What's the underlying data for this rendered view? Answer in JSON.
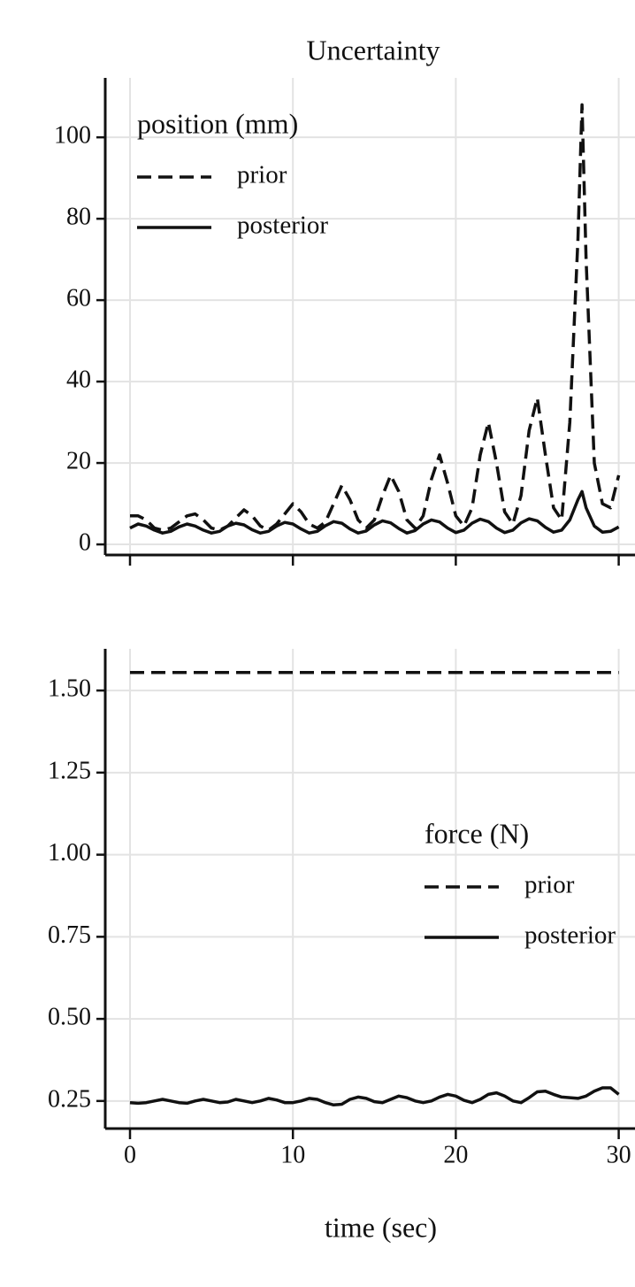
{
  "chart_data": [
    {
      "type": "line",
      "title": "Uncertainty",
      "legend_title": "position (mm)",
      "legend": "upper left",
      "grid": true,
      "xtick_labels": false,
      "xlim": [
        -1.52,
        31.0
      ],
      "xticks": [
        0,
        10,
        20,
        30
      ],
      "ylim": [
        -2.6,
        114.6
      ],
      "yticks": [
        0,
        20,
        40,
        60,
        80,
        100
      ],
      "x": [
        0,
        0.5,
        1,
        1.5,
        2,
        2.5,
        3,
        3.5,
        4,
        4.5,
        5,
        5.5,
        6,
        6.5,
        7,
        7.5,
        8,
        8.5,
        9,
        9.5,
        10,
        10.5,
        11,
        11.5,
        12,
        12.5,
        13,
        13.5,
        14,
        14.5,
        15,
        15.5,
        16,
        16.5,
        17,
        17.5,
        18,
        18.5,
        19,
        19.5,
        20,
        20.5,
        21,
        21.5,
        22,
        22.5,
        23,
        23.5,
        24,
        24.5,
        25,
        25.5,
        26,
        26.5,
        27,
        27.5,
        27.75,
        28,
        28.5,
        29,
        29.5,
        30
      ],
      "series": [
        {
          "name": "prior",
          "color": "#111111",
          "linestyle": "dashed",
          "values": [
            7,
            7,
            6,
            4,
            3.5,
            4,
            5.5,
            7,
            7.5,
            6,
            4,
            3.5,
            4.5,
            6.5,
            8.5,
            7,
            4.5,
            3.5,
            5,
            7.5,
            10,
            8,
            5,
            4,
            5.5,
            10,
            14.5,
            11,
            6,
            4,
            6,
            12,
            17,
            13,
            6,
            4,
            7,
            16,
            22,
            15,
            7,
            4.5,
            9,
            22,
            30,
            20,
            8,
            5,
            12,
            28,
            36,
            22,
            9,
            6,
            30,
            75,
            108,
            70,
            20,
            10,
            9,
            17
          ]
        },
        {
          "name": "posterior",
          "color": "#111111",
          "linestyle": "solid",
          "values": [
            4,
            5,
            4.5,
            3.5,
            2.8,
            3.2,
            4.3,
            5,
            4.5,
            3.5,
            2.8,
            3.2,
            4.5,
            5.2,
            4.8,
            3.6,
            2.8,
            3.2,
            4.5,
            5.4,
            5,
            3.8,
            2.8,
            3.2,
            4.6,
            5.6,
            5.2,
            3.8,
            2.8,
            3.3,
            4.8,
            5.8,
            5.3,
            3.9,
            2.8,
            3.4,
            5,
            6,
            5.5,
            4,
            2.9,
            3.5,
            5.2,
            6.2,
            5.6,
            4,
            2.9,
            3.5,
            5.3,
            6.3,
            5.8,
            4.2,
            3,
            3.5,
            6,
            11,
            13,
            9,
            4.5,
            3,
            3.2,
            4.3
          ]
        }
      ]
    },
    {
      "type": "line",
      "legend_title": "force (N)",
      "legend": "center right",
      "grid": true,
      "xlabel": "time (sec)",
      "xlim": [
        -1.52,
        31.0
      ],
      "xticks": [
        0,
        10,
        20,
        30
      ],
      "ylim": [
        0.166,
        1.627
      ],
      "yticks": [
        0.25,
        {
          "value": 0.5,
          "label": "0.50"
        },
        0.75,
        {
          "value": 1,
          "label": "1.00"
        },
        1.25,
        {
          "value": 1.5,
          "label": "1.50"
        }
      ],
      "series": [
        {
          "name": "prior",
          "color": "#111111",
          "linestyle": "dashed",
          "x": [
            0,
            30
          ],
          "values": [
            1.555,
            1.555
          ]
        },
        {
          "name": "posterior",
          "color": "#111111",
          "linestyle": "solid",
          "x": [
            0,
            0.5,
            1,
            1.5,
            2,
            2.5,
            3,
            3.5,
            4,
            4.5,
            5,
            5.5,
            6,
            6.5,
            7,
            7.5,
            8,
            8.5,
            9,
            9.5,
            10,
            10.5,
            11,
            11.5,
            12,
            12.5,
            13,
            13.5,
            14,
            14.5,
            15,
            15.5,
            16,
            16.5,
            17,
            17.5,
            18,
            18.5,
            19,
            19.5,
            20,
            20.5,
            21,
            21.5,
            22,
            22.5,
            23,
            23.5,
            24,
            24.5,
            25,
            25.5,
            26,
            26.5,
            27,
            27.5,
            28,
            28.5,
            29,
            29.5,
            30
          ],
          "values": [
            0.245,
            0.243,
            0.245,
            0.25,
            0.255,
            0.25,
            0.245,
            0.243,
            0.25,
            0.255,
            0.25,
            0.245,
            0.247,
            0.255,
            0.25,
            0.245,
            0.25,
            0.258,
            0.253,
            0.245,
            0.245,
            0.25,
            0.258,
            0.255,
            0.245,
            0.238,
            0.24,
            0.255,
            0.262,
            0.258,
            0.248,
            0.245,
            0.255,
            0.265,
            0.26,
            0.25,
            0.245,
            0.25,
            0.262,
            0.27,
            0.265,
            0.252,
            0.245,
            0.255,
            0.27,
            0.275,
            0.265,
            0.25,
            0.245,
            0.26,
            0.278,
            0.28,
            0.27,
            0.262,
            0.26,
            0.258,
            0.265,
            0.28,
            0.29,
            0.29,
            0.27
          ]
        }
      ]
    }
  ]
}
